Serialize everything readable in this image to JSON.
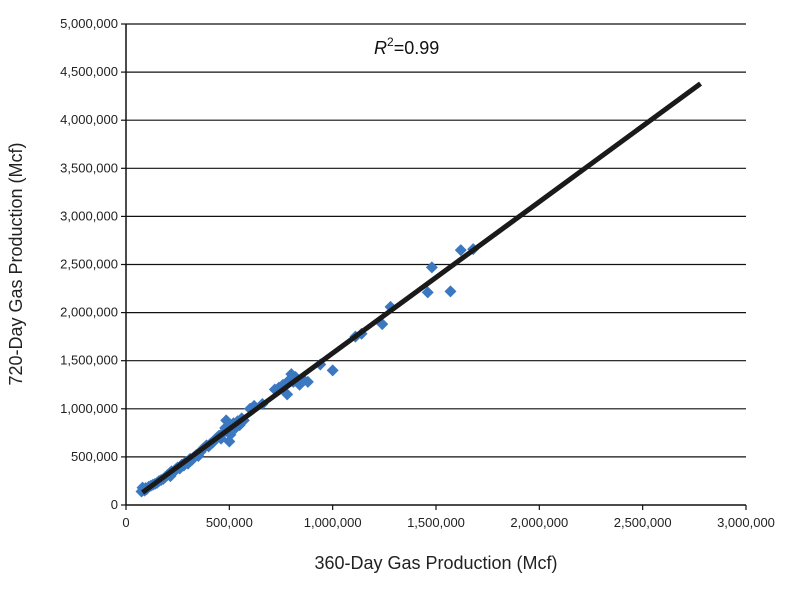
{
  "chart_data": {
    "type": "scatter",
    "title": "",
    "xlabel": "360-Day Gas Production (Mcf)",
    "ylabel": "720-Day Gas Production (Mcf)",
    "xlim": [
      0,
      3000000
    ],
    "ylim": [
      0,
      5000000
    ],
    "xticks": [
      0,
      500000,
      1000000,
      1500000,
      2000000,
      2500000,
      3000000
    ],
    "xtick_labels": [
      "0",
      "500,000",
      "1,000,000",
      "1,500,000",
      "2,000,000",
      "2,500,000",
      "3,000,000"
    ],
    "yticks": [
      0,
      500000,
      1000000,
      1500000,
      2000000,
      2500000,
      3000000,
      3500000,
      4000000,
      4500000,
      5000000
    ],
    "ytick_labels": [
      "0",
      "500,000",
      "1,000,000",
      "1,500,000",
      "2,000,000",
      "2,500,000",
      "3,000,000",
      "3,500,000",
      "4,000,000",
      "4,500,000",
      "5,000,000"
    ],
    "grid": "horizontal",
    "annotation": {
      "r_label": "R",
      "r_sup": "2",
      "r_value": "=0.99"
    },
    "trendline": {
      "x": [
        80000,
        2780000
      ],
      "y": [
        130000,
        4380000
      ],
      "color": "#1a1a1a"
    },
    "marker_color": "#3a78c2",
    "series": [
      {
        "marker": "diamond",
        "points": [
          [
            75000,
            140000
          ],
          [
            80000,
            180000
          ],
          [
            85000,
            160000
          ],
          [
            90000,
            150000
          ],
          [
            95000,
            175000
          ],
          [
            100000,
            165000
          ],
          [
            110000,
            190000
          ],
          [
            120000,
            200000
          ],
          [
            130000,
            210000
          ],
          [
            140000,
            220000
          ],
          [
            150000,
            230000
          ],
          [
            160000,
            250000
          ],
          [
            170000,
            260000
          ],
          [
            180000,
            270000
          ],
          [
            190000,
            290000
          ],
          [
            200000,
            310000
          ],
          [
            210000,
            330000
          ],
          [
            215000,
            300000
          ],
          [
            220000,
            350000
          ],
          [
            230000,
            340000
          ],
          [
            240000,
            370000
          ],
          [
            250000,
            390000
          ],
          [
            260000,
            380000
          ],
          [
            270000,
            420000
          ],
          [
            280000,
            410000
          ],
          [
            290000,
            450000
          ],
          [
            300000,
            430000
          ],
          [
            310000,
            480000
          ],
          [
            320000,
            470000
          ],
          [
            330000,
            500000
          ],
          [
            340000,
            520000
          ],
          [
            350000,
            510000
          ],
          [
            360000,
            550000
          ],
          [
            370000,
            580000
          ],
          [
            380000,
            600000
          ],
          [
            390000,
            620000
          ],
          [
            400000,
            610000
          ],
          [
            410000,
            640000
          ],
          [
            420000,
            650000
          ],
          [
            430000,
            680000
          ],
          [
            440000,
            700000
          ],
          [
            450000,
            720000
          ],
          [
            460000,
            690000
          ],
          [
            470000,
            750000
          ],
          [
            480000,
            800000
          ],
          [
            485000,
            880000
          ],
          [
            490000,
            780000
          ],
          [
            500000,
            660000
          ],
          [
            505000,
            730000
          ],
          [
            510000,
            820000
          ],
          [
            520000,
            850000
          ],
          [
            530000,
            800000
          ],
          [
            540000,
            870000
          ],
          [
            550000,
            830000
          ],
          [
            560000,
            900000
          ],
          [
            570000,
            880000
          ],
          [
            600000,
            1000000
          ],
          [
            620000,
            1030000
          ],
          [
            660000,
            1050000
          ],
          [
            720000,
            1200000
          ],
          [
            740000,
            1220000
          ],
          [
            760000,
            1250000
          ],
          [
            780000,
            1150000
          ],
          [
            790000,
            1300000
          ],
          [
            800000,
            1360000
          ],
          [
            810000,
            1280000
          ],
          [
            820000,
            1330000
          ],
          [
            840000,
            1250000
          ],
          [
            860000,
            1300000
          ],
          [
            880000,
            1280000
          ],
          [
            940000,
            1460000
          ],
          [
            1000000,
            1400000
          ],
          [
            1110000,
            1750000
          ],
          [
            1140000,
            1780000
          ],
          [
            1240000,
            1880000
          ],
          [
            1280000,
            2060000
          ],
          [
            1460000,
            2210000
          ],
          [
            1480000,
            2470000
          ],
          [
            1570000,
            2220000
          ],
          [
            1620000,
            2650000
          ],
          [
            1680000,
            2660000
          ]
        ]
      }
    ]
  }
}
